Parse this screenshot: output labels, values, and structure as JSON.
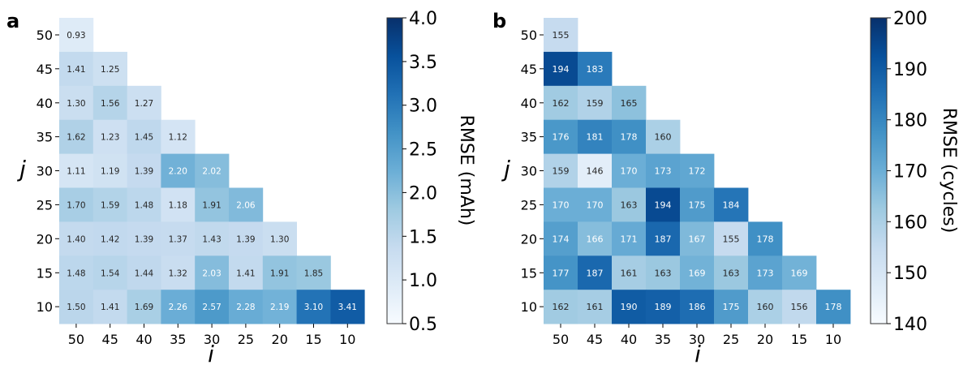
{
  "panels": [
    {
      "letter": "a"
    },
    {
      "letter": "b"
    }
  ],
  "chart_data": [
    {
      "type": "heatmap",
      "panel_label": "a",
      "xlabel": "i",
      "ylabel": "j",
      "x_categories": [
        "50",
        "45",
        "40",
        "35",
        "30",
        "25",
        "20",
        "15",
        "10"
      ],
      "y_categories": [
        "50",
        "45",
        "40",
        "35",
        "30",
        "25",
        "20",
        "15",
        "10"
      ],
      "colorbar": {
        "label": "RMSE (mAh)",
        "min": 0.5,
        "max": 4.0,
        "ticks": [
          "0.5",
          "1.0",
          "1.5",
          "2.0",
          "2.5",
          "3.0",
          "3.5",
          "4.0"
        ],
        "colormap": "Blues"
      },
      "cells": [
        [
          "0.93"
        ],
        [
          "1.41",
          "1.25"
        ],
        [
          "1.30",
          "1.56",
          "1.27"
        ],
        [
          "1.62",
          "1.23",
          "1.45",
          "1.12"
        ],
        [
          "1.11",
          "1.19",
          "1.39",
          "2.20",
          "2.02"
        ],
        [
          "1.70",
          "1.59",
          "1.48",
          "1.18",
          "1.91",
          "2.06"
        ],
        [
          "1.40",
          "1.42",
          "1.39",
          "1.37",
          "1.43",
          "1.39",
          "1.30"
        ],
        [
          "1.48",
          "1.54",
          "1.44",
          "1.32",
          "2.03",
          "1.41",
          "1.91",
          "1.85"
        ],
        [
          "1.50",
          "1.41",
          "1.69",
          "2.26",
          "2.57",
          "2.28",
          "2.19",
          "3.10",
          "3.41"
        ]
      ]
    },
    {
      "type": "heatmap",
      "panel_label": "b",
      "xlabel": "i",
      "ylabel": "j",
      "x_categories": [
        "50",
        "45",
        "40",
        "35",
        "30",
        "25",
        "20",
        "15",
        "10"
      ],
      "y_categories": [
        "50",
        "45",
        "40",
        "35",
        "30",
        "25",
        "20",
        "15",
        "10"
      ],
      "colorbar": {
        "label": "RMSE (cycles)",
        "min": 140,
        "max": 200,
        "ticks": [
          "140",
          "150",
          "160",
          "170",
          "180",
          "190",
          "200"
        ],
        "colormap": "Blues"
      },
      "cells": [
        [
          "155"
        ],
        [
          "194",
          "183"
        ],
        [
          "162",
          "159",
          "165"
        ],
        [
          "176",
          "181",
          "178",
          "160"
        ],
        [
          "159",
          "146",
          "170",
          "173",
          "172"
        ],
        [
          "170",
          "170",
          "163",
          "194",
          "175",
          "184"
        ],
        [
          "174",
          "166",
          "171",
          "187",
          "167",
          "155",
          "178"
        ],
        [
          "177",
          "187",
          "161",
          "163",
          "169",
          "163",
          "173",
          "169"
        ],
        [
          "162",
          "161",
          "190",
          "189",
          "186",
          "175",
          "160",
          "156",
          "178"
        ]
      ]
    }
  ]
}
